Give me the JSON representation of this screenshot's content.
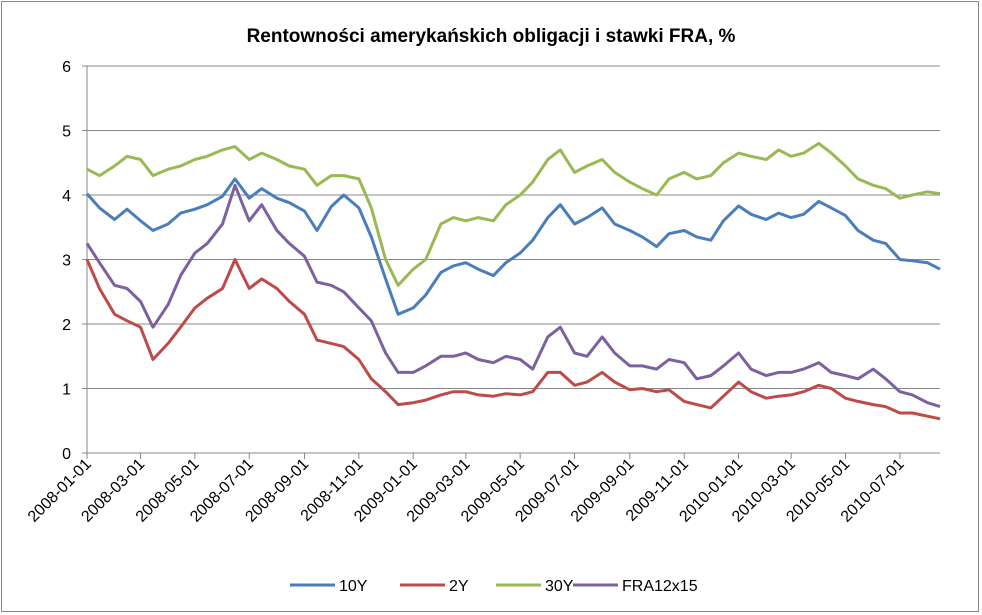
{
  "chart_data": {
    "type": "line",
    "title": "Rentowności amerykańskich obligacji i stawki FRA, %",
    "xlabel": "",
    "ylabel": "",
    "ylim": [
      0,
      6
    ],
    "yticks": [
      "0",
      "1",
      "2",
      "3",
      "4",
      "5",
      "6"
    ],
    "xlim": [
      "2008-01-01",
      "2010-08-15"
    ],
    "xticks": [
      "2008-01-01",
      "2008-03-01",
      "2008-05-01",
      "2008-07-01",
      "2008-09-01",
      "2008-11-01",
      "2009-01-01",
      "2009-03-01",
      "2009-05-01",
      "2009-07-01",
      "2009-09-01",
      "2009-11-01",
      "2010-01-01",
      "2010-03-01",
      "2010-05-01",
      "2010-07-01"
    ],
    "grid": "horizontal",
    "legend_position": "bottom",
    "series": [
      {
        "name": "10Y",
        "color": "#4a7ebb",
        "points": [
          [
            "2008-01-01",
            4.02
          ],
          [
            "2008-01-15",
            3.8
          ],
          [
            "2008-02-01",
            3.62
          ],
          [
            "2008-02-15",
            3.78
          ],
          [
            "2008-03-01",
            3.6
          ],
          [
            "2008-03-15",
            3.45
          ],
          [
            "2008-04-01",
            3.55
          ],
          [
            "2008-04-15",
            3.72
          ],
          [
            "2008-05-01",
            3.78
          ],
          [
            "2008-05-15",
            3.85
          ],
          [
            "2008-06-01",
            3.98
          ],
          [
            "2008-06-15",
            4.25
          ],
          [
            "2008-07-01",
            3.95
          ],
          [
            "2008-07-15",
            4.1
          ],
          [
            "2008-08-01",
            3.95
          ],
          [
            "2008-08-15",
            3.88
          ],
          [
            "2008-09-01",
            3.75
          ],
          [
            "2008-09-15",
            3.45
          ],
          [
            "2008-10-01",
            3.82
          ],
          [
            "2008-10-15",
            4.0
          ],
          [
            "2008-11-01",
            3.8
          ],
          [
            "2008-11-15",
            3.35
          ],
          [
            "2008-12-01",
            2.7
          ],
          [
            "2008-12-15",
            2.15
          ],
          [
            "2009-01-01",
            2.25
          ],
          [
            "2009-01-15",
            2.45
          ],
          [
            "2009-02-01",
            2.8
          ],
          [
            "2009-02-15",
            2.9
          ],
          [
            "2009-03-01",
            2.95
          ],
          [
            "2009-03-15",
            2.85
          ],
          [
            "2009-04-01",
            2.75
          ],
          [
            "2009-04-15",
            2.95
          ],
          [
            "2009-05-01",
            3.1
          ],
          [
            "2009-05-15",
            3.3
          ],
          [
            "2009-06-01",
            3.65
          ],
          [
            "2009-06-15",
            3.85
          ],
          [
            "2009-07-01",
            3.55
          ],
          [
            "2009-07-15",
            3.65
          ],
          [
            "2009-08-01",
            3.8
          ],
          [
            "2009-08-15",
            3.55
          ],
          [
            "2009-09-01",
            3.45
          ],
          [
            "2009-09-15",
            3.35
          ],
          [
            "2009-10-01",
            3.2
          ],
          [
            "2009-10-15",
            3.4
          ],
          [
            "2009-11-01",
            3.45
          ],
          [
            "2009-11-15",
            3.35
          ],
          [
            "2009-12-01",
            3.3
          ],
          [
            "2009-12-15",
            3.6
          ],
          [
            "2010-01-01",
            3.83
          ],
          [
            "2010-01-15",
            3.7
          ],
          [
            "2010-02-01",
            3.62
          ],
          [
            "2010-02-15",
            3.72
          ],
          [
            "2010-03-01",
            3.65
          ],
          [
            "2010-03-15",
            3.7
          ],
          [
            "2010-04-01",
            3.9
          ],
          [
            "2010-04-15",
            3.8
          ],
          [
            "2010-05-01",
            3.68
          ],
          [
            "2010-05-15",
            3.45
          ],
          [
            "2010-06-01",
            3.3
          ],
          [
            "2010-06-15",
            3.25
          ],
          [
            "2010-07-01",
            3.0
          ],
          [
            "2010-07-15",
            2.98
          ],
          [
            "2010-08-01",
            2.95
          ],
          [
            "2010-08-15",
            2.85
          ]
        ]
      },
      {
        "name": "2Y",
        "color": "#be4b48",
        "points": [
          [
            "2008-01-01",
            3.0
          ],
          [
            "2008-01-15",
            2.55
          ],
          [
            "2008-02-01",
            2.15
          ],
          [
            "2008-02-15",
            2.05
          ],
          [
            "2008-03-01",
            1.95
          ],
          [
            "2008-03-15",
            1.45
          ],
          [
            "2008-04-01",
            1.7
          ],
          [
            "2008-04-15",
            1.95
          ],
          [
            "2008-05-01",
            2.25
          ],
          [
            "2008-05-15",
            2.4
          ],
          [
            "2008-06-01",
            2.55
          ],
          [
            "2008-06-15",
            3.0
          ],
          [
            "2008-07-01",
            2.55
          ],
          [
            "2008-07-15",
            2.7
          ],
          [
            "2008-08-01",
            2.55
          ],
          [
            "2008-08-15",
            2.35
          ],
          [
            "2008-09-01",
            2.15
          ],
          [
            "2008-09-15",
            1.75
          ],
          [
            "2008-10-01",
            1.7
          ],
          [
            "2008-10-15",
            1.65
          ],
          [
            "2008-11-01",
            1.45
          ],
          [
            "2008-11-15",
            1.15
          ],
          [
            "2008-12-01",
            0.95
          ],
          [
            "2008-12-15",
            0.75
          ],
          [
            "2009-01-01",
            0.78
          ],
          [
            "2009-01-15",
            0.82
          ],
          [
            "2009-02-01",
            0.9
          ],
          [
            "2009-02-15",
            0.95
          ],
          [
            "2009-03-01",
            0.95
          ],
          [
            "2009-03-15",
            0.9
          ],
          [
            "2009-04-01",
            0.88
          ],
          [
            "2009-04-15",
            0.92
          ],
          [
            "2009-05-01",
            0.9
          ],
          [
            "2009-05-15",
            0.95
          ],
          [
            "2009-06-01",
            1.25
          ],
          [
            "2009-06-15",
            1.25
          ],
          [
            "2009-07-01",
            1.05
          ],
          [
            "2009-07-15",
            1.1
          ],
          [
            "2009-08-01",
            1.25
          ],
          [
            "2009-08-15",
            1.1
          ],
          [
            "2009-09-01",
            0.98
          ],
          [
            "2009-09-15",
            1.0
          ],
          [
            "2009-10-01",
            0.95
          ],
          [
            "2009-10-15",
            0.98
          ],
          [
            "2009-11-01",
            0.8
          ],
          [
            "2009-11-15",
            0.75
          ],
          [
            "2009-12-01",
            0.7
          ],
          [
            "2009-12-15",
            0.88
          ],
          [
            "2010-01-01",
            1.1
          ],
          [
            "2010-01-15",
            0.95
          ],
          [
            "2010-02-01",
            0.85
          ],
          [
            "2010-02-15",
            0.88
          ],
          [
            "2010-03-01",
            0.9
          ],
          [
            "2010-03-15",
            0.95
          ],
          [
            "2010-04-01",
            1.05
          ],
          [
            "2010-04-15",
            1.0
          ],
          [
            "2010-05-01",
            0.85
          ],
          [
            "2010-05-15",
            0.8
          ],
          [
            "2010-06-01",
            0.75
          ],
          [
            "2010-06-15",
            0.72
          ],
          [
            "2010-07-01",
            0.62
          ],
          [
            "2010-07-15",
            0.62
          ],
          [
            "2010-08-01",
            0.57
          ],
          [
            "2010-08-15",
            0.53
          ]
        ]
      },
      {
        "name": "30Y",
        "color": "#98b954",
        "points": [
          [
            "2008-01-01",
            4.4
          ],
          [
            "2008-01-15",
            4.3
          ],
          [
            "2008-02-01",
            4.45
          ],
          [
            "2008-02-15",
            4.6
          ],
          [
            "2008-03-01",
            4.55
          ],
          [
            "2008-03-15",
            4.3
          ],
          [
            "2008-04-01",
            4.4
          ],
          [
            "2008-04-15",
            4.45
          ],
          [
            "2008-05-01",
            4.55
          ],
          [
            "2008-05-15",
            4.6
          ],
          [
            "2008-06-01",
            4.7
          ],
          [
            "2008-06-15",
            4.75
          ],
          [
            "2008-07-01",
            4.55
          ],
          [
            "2008-07-15",
            4.65
          ],
          [
            "2008-08-01",
            4.55
          ],
          [
            "2008-08-15",
            4.45
          ],
          [
            "2008-09-01",
            4.4
          ],
          [
            "2008-09-15",
            4.15
          ],
          [
            "2008-10-01",
            4.3
          ],
          [
            "2008-10-15",
            4.3
          ],
          [
            "2008-11-01",
            4.25
          ],
          [
            "2008-11-15",
            3.8
          ],
          [
            "2008-12-01",
            3.0
          ],
          [
            "2008-12-15",
            2.6
          ],
          [
            "2009-01-01",
            2.85
          ],
          [
            "2009-01-15",
            3.0
          ],
          [
            "2009-02-01",
            3.55
          ],
          [
            "2009-02-15",
            3.65
          ],
          [
            "2009-03-01",
            3.6
          ],
          [
            "2009-03-15",
            3.65
          ],
          [
            "2009-04-01",
            3.6
          ],
          [
            "2009-04-15",
            3.85
          ],
          [
            "2009-05-01",
            4.0
          ],
          [
            "2009-05-15",
            4.2
          ],
          [
            "2009-06-01",
            4.55
          ],
          [
            "2009-06-15",
            4.7
          ],
          [
            "2009-07-01",
            4.35
          ],
          [
            "2009-07-15",
            4.45
          ],
          [
            "2009-08-01",
            4.55
          ],
          [
            "2009-08-15",
            4.35
          ],
          [
            "2009-09-01",
            4.2
          ],
          [
            "2009-09-15",
            4.1
          ],
          [
            "2009-10-01",
            4.0
          ],
          [
            "2009-10-15",
            4.25
          ],
          [
            "2009-11-01",
            4.35
          ],
          [
            "2009-11-15",
            4.25
          ],
          [
            "2009-12-01",
            4.3
          ],
          [
            "2009-12-15",
            4.5
          ],
          [
            "2010-01-01",
            4.65
          ],
          [
            "2010-01-15",
            4.6
          ],
          [
            "2010-02-01",
            4.55
          ],
          [
            "2010-02-15",
            4.7
          ],
          [
            "2010-03-01",
            4.6
          ],
          [
            "2010-03-15",
            4.65
          ],
          [
            "2010-04-01",
            4.8
          ],
          [
            "2010-04-15",
            4.65
          ],
          [
            "2010-05-01",
            4.45
          ],
          [
            "2010-05-15",
            4.25
          ],
          [
            "2010-06-01",
            4.15
          ],
          [
            "2010-06-15",
            4.1
          ],
          [
            "2010-07-01",
            3.95
          ],
          [
            "2010-07-15",
            4.0
          ],
          [
            "2010-08-01",
            4.05
          ],
          [
            "2010-08-15",
            4.02
          ]
        ]
      },
      {
        "name": "FRA12x15",
        "color": "#7d60a0",
        "points": [
          [
            "2008-01-01",
            3.25
          ],
          [
            "2008-01-15",
            2.95
          ],
          [
            "2008-02-01",
            2.6
          ],
          [
            "2008-02-15",
            2.55
          ],
          [
            "2008-03-01",
            2.35
          ],
          [
            "2008-03-15",
            1.95
          ],
          [
            "2008-04-01",
            2.3
          ],
          [
            "2008-04-15",
            2.75
          ],
          [
            "2008-05-01",
            3.1
          ],
          [
            "2008-05-15",
            3.25
          ],
          [
            "2008-06-01",
            3.55
          ],
          [
            "2008-06-15",
            4.15
          ],
          [
            "2008-07-01",
            3.6
          ],
          [
            "2008-07-15",
            3.85
          ],
          [
            "2008-08-01",
            3.45
          ],
          [
            "2008-08-15",
            3.25
          ],
          [
            "2008-09-01",
            3.05
          ],
          [
            "2008-09-15",
            2.65
          ],
          [
            "2008-10-01",
            2.6
          ],
          [
            "2008-10-15",
            2.5
          ],
          [
            "2008-11-01",
            2.25
          ],
          [
            "2008-11-15",
            2.05
          ],
          [
            "2008-12-01",
            1.55
          ],
          [
            "2008-12-15",
            1.25
          ],
          [
            "2009-01-01",
            1.25
          ],
          [
            "2009-01-15",
            1.35
          ],
          [
            "2009-02-01",
            1.5
          ],
          [
            "2009-02-15",
            1.5
          ],
          [
            "2009-03-01",
            1.55
          ],
          [
            "2009-03-15",
            1.45
          ],
          [
            "2009-04-01",
            1.4
          ],
          [
            "2009-04-15",
            1.5
          ],
          [
            "2009-05-01",
            1.45
          ],
          [
            "2009-05-15",
            1.3
          ],
          [
            "2009-06-01",
            1.8
          ],
          [
            "2009-06-15",
            1.95
          ],
          [
            "2009-07-01",
            1.55
          ],
          [
            "2009-07-15",
            1.5
          ],
          [
            "2009-08-01",
            1.8
          ],
          [
            "2009-08-15",
            1.55
          ],
          [
            "2009-09-01",
            1.35
          ],
          [
            "2009-09-15",
            1.35
          ],
          [
            "2009-10-01",
            1.3
          ],
          [
            "2009-10-15",
            1.45
          ],
          [
            "2009-11-01",
            1.4
          ],
          [
            "2009-11-15",
            1.15
          ],
          [
            "2009-12-01",
            1.2
          ],
          [
            "2009-12-15",
            1.35
          ],
          [
            "2010-01-01",
            1.55
          ],
          [
            "2010-01-15",
            1.3
          ],
          [
            "2010-02-01",
            1.2
          ],
          [
            "2010-02-15",
            1.25
          ],
          [
            "2010-03-01",
            1.25
          ],
          [
            "2010-03-15",
            1.3
          ],
          [
            "2010-04-01",
            1.4
          ],
          [
            "2010-04-15",
            1.25
          ],
          [
            "2010-05-01",
            1.2
          ],
          [
            "2010-05-15",
            1.15
          ],
          [
            "2010-06-01",
            1.3
          ],
          [
            "2010-06-15",
            1.15
          ],
          [
            "2010-07-01",
            0.95
          ],
          [
            "2010-07-15",
            0.9
          ],
          [
            "2010-08-01",
            0.78
          ],
          [
            "2010-08-15",
            0.72
          ]
        ]
      }
    ]
  }
}
